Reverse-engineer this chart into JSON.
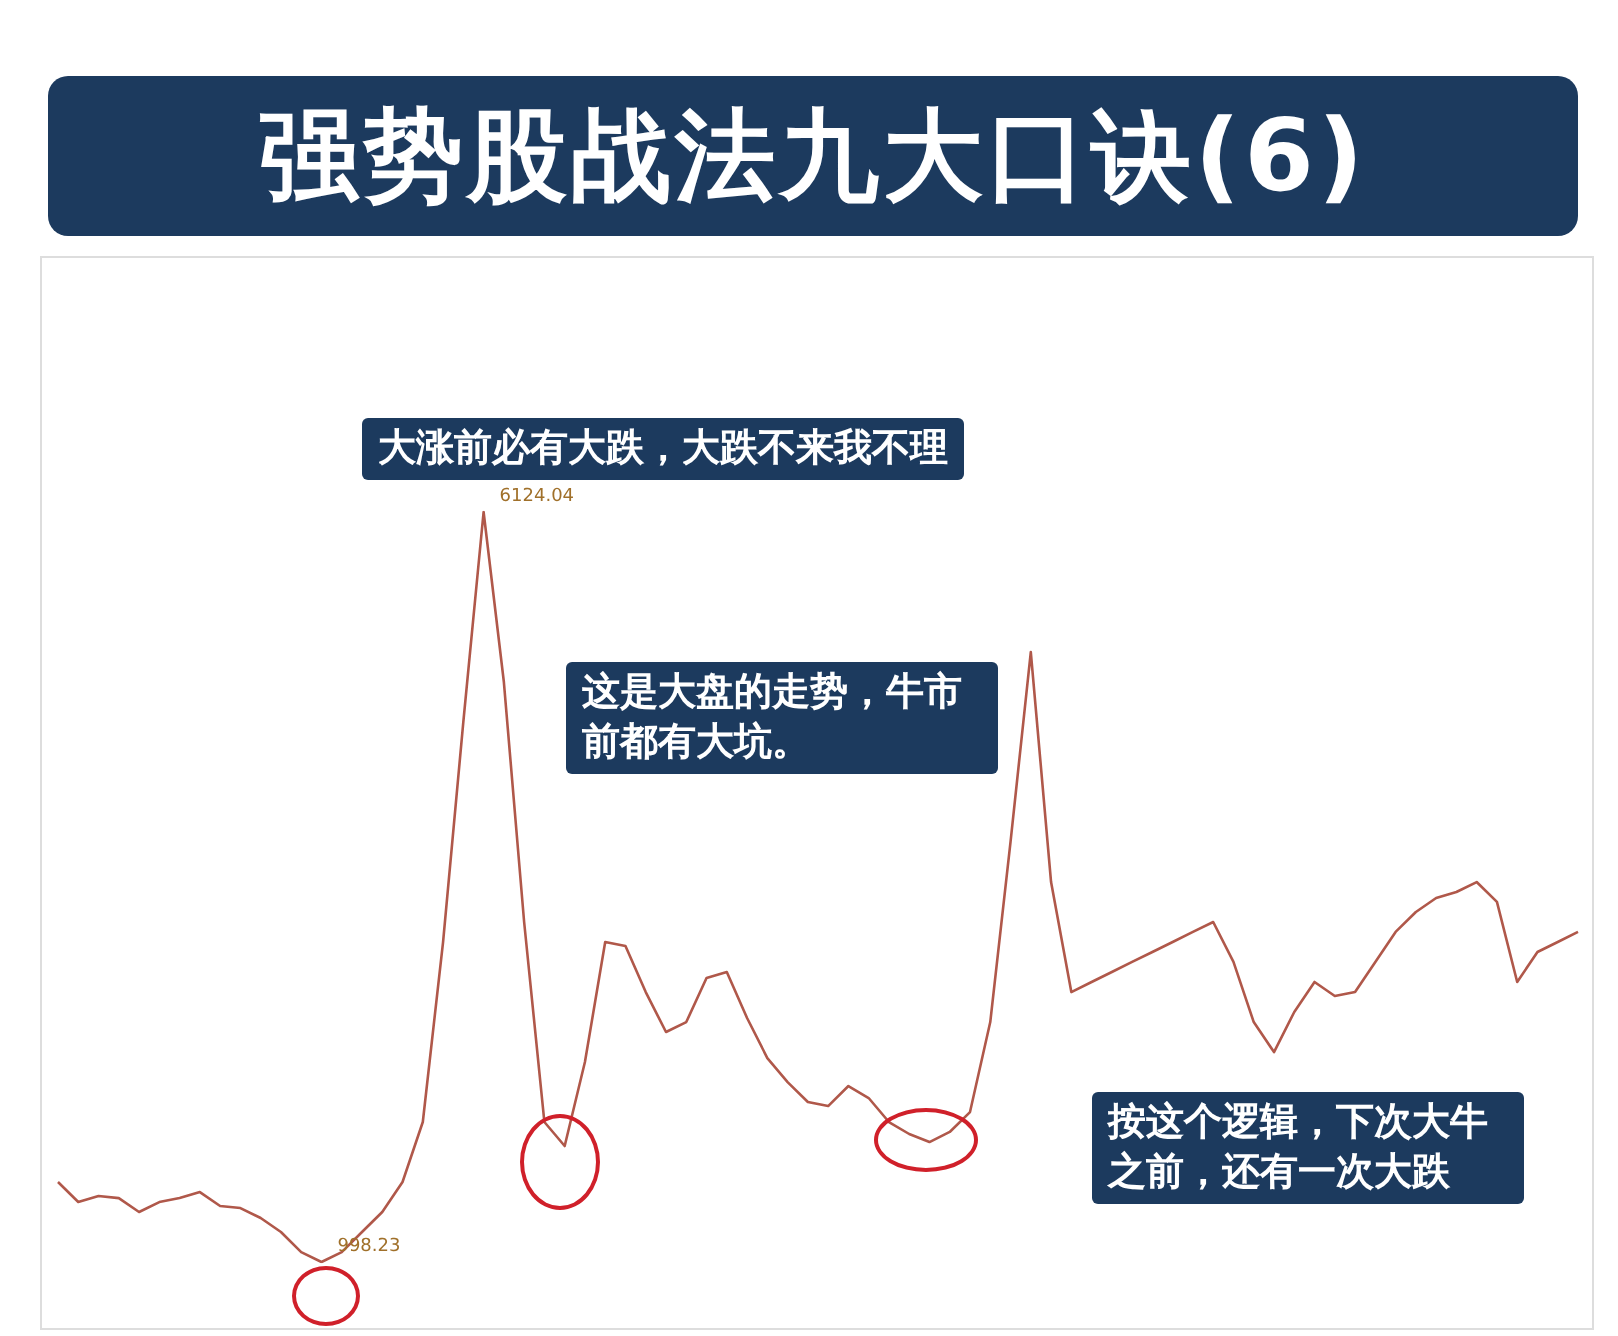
{
  "chart_data": {
    "type": "line",
    "title": "强势股战法九大口诀(6)",
    "categories": [
      null,
      null,
      null,
      null,
      null,
      null,
      null,
      null,
      null,
      null,
      null,
      null,
      null,
      null,
      null,
      null,
      null,
      null,
      null,
      null,
      null,
      null,
      null,
      null,
      null,
      null,
      null,
      null,
      null,
      null,
      null,
      null,
      null,
      null,
      null,
      null,
      null,
      null,
      null,
      null,
      null,
      null,
      null,
      null,
      null,
      null,
      null,
      null,
      null,
      null,
      null,
      null,
      null,
      null,
      null,
      null,
      null,
      null,
      null,
      null,
      null,
      null,
      null,
      null,
      null,
      null,
      null,
      null,
      null,
      null,
      null,
      null,
      null,
      null,
      null,
      null
    ],
    "series": [
      {
        "color": "#b0584a",
        "values": [
          1545,
          1408,
          1449,
          1435,
          1340,
          1408,
          1435,
          1476,
          1381,
          1367,
          1299,
          1203,
          1066,
          998.23,
          1066,
          1203,
          1340,
          1545,
          1955,
          3185,
          4689,
          6124.04,
          4962,
          3322,
          1955,
          1791,
          2365,
          3185,
          3158,
          2843,
          2570,
          2638,
          2939,
          2980,
          2666,
          2392,
          2228,
          2092,
          2064,
          2201,
          2119,
          1955,
          1873,
          1818,
          1887,
          2023,
          2638,
          3869,
          5167,
          3595,
          2843,
          2912,
          2980,
          3049,
          3117,
          3185,
          3254,
          3322,
          3049,
          2638,
          2433,
          2707,
          2912,
          2816,
          2843,
          3049,
          3254,
          3390,
          3486,
          3527,
          3595,
          3459,
          2912,
          3117,
          3185,
          3254
        ],
        "value_labels": [
          null,
          null,
          null,
          null,
          null,
          null,
          null,
          null,
          null,
          null,
          null,
          null,
          null,
          "998.23",
          null,
          null,
          null,
          null,
          null,
          null,
          null,
          "6124.04",
          null,
          null,
          null,
          null,
          null,
          null,
          null,
          null,
          null,
          null,
          null,
          null,
          null,
          null,
          null,
          null,
          null,
          null,
          null,
          null,
          null,
          null,
          null,
          null,
          null,
          null,
          null,
          null,
          null,
          null,
          null,
          null,
          null,
          null,
          null,
          null,
          null,
          null,
          null,
          null,
          null,
          null,
          null,
          null,
          null,
          null,
          null,
          null,
          null,
          null,
          null,
          null,
          null,
          null
        ]
      }
    ],
    "annotations": [
      "大涨前必有大跌，大跌不来我不理",
      "这是大盘的走势，牛市前都有大坑。",
      "按这个逻辑，下次大牛之前，还有一次大跌"
    ],
    "legend": false,
    "marker": "none",
    "line_style": "solid"
  }
}
